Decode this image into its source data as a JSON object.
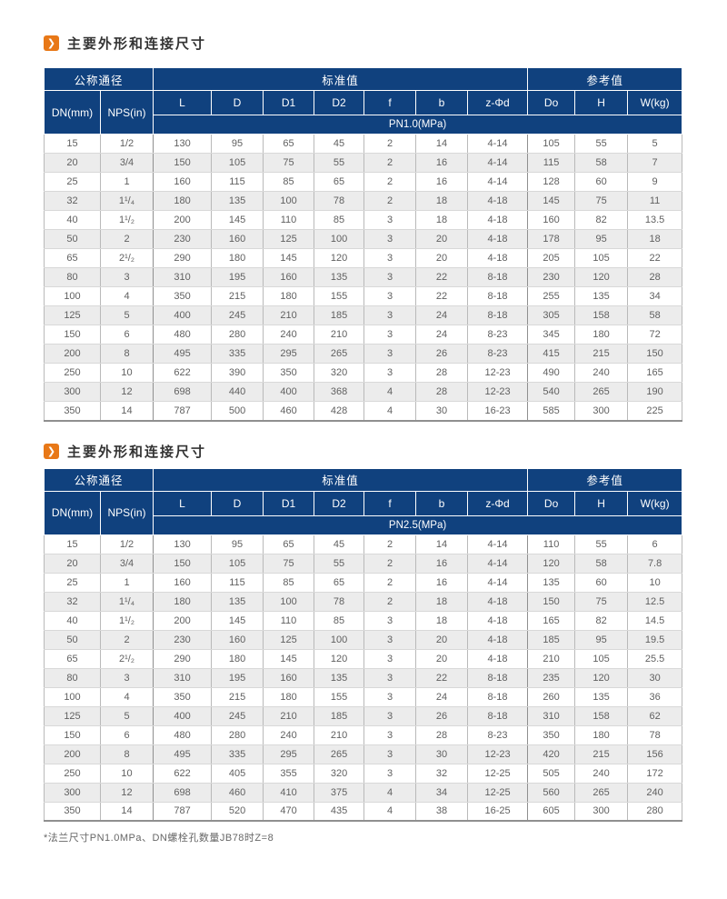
{
  "colors": {
    "header_navy": "#10417E",
    "accent_orange": "#E87817",
    "row_stripe": "#ECECEC"
  },
  "icons": {
    "title_bullet": "❯"
  },
  "table_headers": {
    "group_nominal": "公称通径",
    "group_standard": "标准值",
    "group_reference": "参考值",
    "col_dn": "DN(mm)",
    "col_nps": "NPS(in)",
    "cols_standard": [
      "L",
      "D",
      "D1",
      "D2",
      "f",
      "b",
      "z-Φd"
    ],
    "cols_reference": [
      "Do",
      "H",
      "W(kg)"
    ]
  },
  "sections": [
    {
      "title": "主要外形和连接尺寸",
      "pn_label": "PN1.0(MPa)",
      "rows": [
        [
          "15",
          "1/2",
          "130",
          "95",
          "65",
          "45",
          "2",
          "14",
          "4-14",
          "105",
          "55",
          "5"
        ],
        [
          "20",
          "3/4",
          "150",
          "105",
          "75",
          "55",
          "2",
          "16",
          "4-14",
          "115",
          "58",
          "7"
        ],
        [
          "25",
          "1",
          "160",
          "115",
          "85",
          "65",
          "2",
          "16",
          "4-14",
          "128",
          "60",
          "9"
        ],
        [
          "32",
          "1¹/₄",
          "180",
          "135",
          "100",
          "78",
          "2",
          "18",
          "4-18",
          "145",
          "75",
          "11"
        ],
        [
          "40",
          "1¹/₂",
          "200",
          "145",
          "110",
          "85",
          "3",
          "18",
          "4-18",
          "160",
          "82",
          "13.5"
        ],
        [
          "50",
          "2",
          "230",
          "160",
          "125",
          "100",
          "3",
          "20",
          "4-18",
          "178",
          "95",
          "18"
        ],
        [
          "65",
          "2¹/₂",
          "290",
          "180",
          "145",
          "120",
          "3",
          "20",
          "4-18",
          "205",
          "105",
          "22"
        ],
        [
          "80",
          "3",
          "310",
          "195",
          "160",
          "135",
          "3",
          "22",
          "8-18",
          "230",
          "120",
          "28"
        ],
        [
          "100",
          "4",
          "350",
          "215",
          "180",
          "155",
          "3",
          "22",
          "8-18",
          "255",
          "135",
          "34"
        ],
        [
          "125",
          "5",
          "400",
          "245",
          "210",
          "185",
          "3",
          "24",
          "8-18",
          "305",
          "158",
          "58"
        ],
        [
          "150",
          "6",
          "480",
          "280",
          "240",
          "210",
          "3",
          "24",
          "8-23",
          "345",
          "180",
          "72"
        ],
        [
          "200",
          "8",
          "495",
          "335",
          "295",
          "265",
          "3",
          "26",
          "8-23",
          "415",
          "215",
          "150"
        ],
        [
          "250",
          "10",
          "622",
          "390",
          "350",
          "320",
          "3",
          "28",
          "12-23",
          "490",
          "240",
          "165"
        ],
        [
          "300",
          "12",
          "698",
          "440",
          "400",
          "368",
          "4",
          "28",
          "12-23",
          "540",
          "265",
          "190"
        ],
        [
          "350",
          "14",
          "787",
          "500",
          "460",
          "428",
          "4",
          "30",
          "16-23",
          "585",
          "300",
          "225"
        ]
      ]
    },
    {
      "title": "主要外形和连接尺寸",
      "pn_label": "PN2.5(MPa)",
      "rows": [
        [
          "15",
          "1/2",
          "130",
          "95",
          "65",
          "45",
          "2",
          "14",
          "4-14",
          "110",
          "55",
          "6"
        ],
        [
          "20",
          "3/4",
          "150",
          "105",
          "75",
          "55",
          "2",
          "16",
          "4-14",
          "120",
          "58",
          "7.8"
        ],
        [
          "25",
          "1",
          "160",
          "115",
          "85",
          "65",
          "2",
          "16",
          "4-14",
          "135",
          "60",
          "10"
        ],
        [
          "32",
          "1¹/₄",
          "180",
          "135",
          "100",
          "78",
          "2",
          "18",
          "4-18",
          "150",
          "75",
          "12.5"
        ],
        [
          "40",
          "1¹/₂",
          "200",
          "145",
          "110",
          "85",
          "3",
          "18",
          "4-18",
          "165",
          "82",
          "14.5"
        ],
        [
          "50",
          "2",
          "230",
          "160",
          "125",
          "100",
          "3",
          "20",
          "4-18",
          "185",
          "95",
          "19.5"
        ],
        [
          "65",
          "2¹/₂",
          "290",
          "180",
          "145",
          "120",
          "3",
          "20",
          "4-18",
          "210",
          "105",
          "25.5"
        ],
        [
          "80",
          "3",
          "310",
          "195",
          "160",
          "135",
          "3",
          "22",
          "8-18",
          "235",
          "120",
          "30"
        ],
        [
          "100",
          "4",
          "350",
          "215",
          "180",
          "155",
          "3",
          "24",
          "8-18",
          "260",
          "135",
          "36"
        ],
        [
          "125",
          "5",
          "400",
          "245",
          "210",
          "185",
          "3",
          "26",
          "8-18",
          "310",
          "158",
          "62"
        ],
        [
          "150",
          "6",
          "480",
          "280",
          "240",
          "210",
          "3",
          "28",
          "8-23",
          "350",
          "180",
          "78"
        ],
        [
          "200",
          "8",
          "495",
          "335",
          "295",
          "265",
          "3",
          "30",
          "12-23",
          "420",
          "215",
          "156"
        ],
        [
          "250",
          "10",
          "622",
          "405",
          "355",
          "320",
          "3",
          "32",
          "12-25",
          "505",
          "240",
          "172"
        ],
        [
          "300",
          "12",
          "698",
          "460",
          "410",
          "375",
          "4",
          "34",
          "12-25",
          "560",
          "265",
          "240"
        ],
        [
          "350",
          "14",
          "787",
          "520",
          "470",
          "435",
          "4",
          "38",
          "16-25",
          "605",
          "300",
          "280"
        ]
      ]
    }
  ],
  "footnote": "*法兰尺寸PN1.0MPa、DN螺栓孔数量JB78时Z=8"
}
